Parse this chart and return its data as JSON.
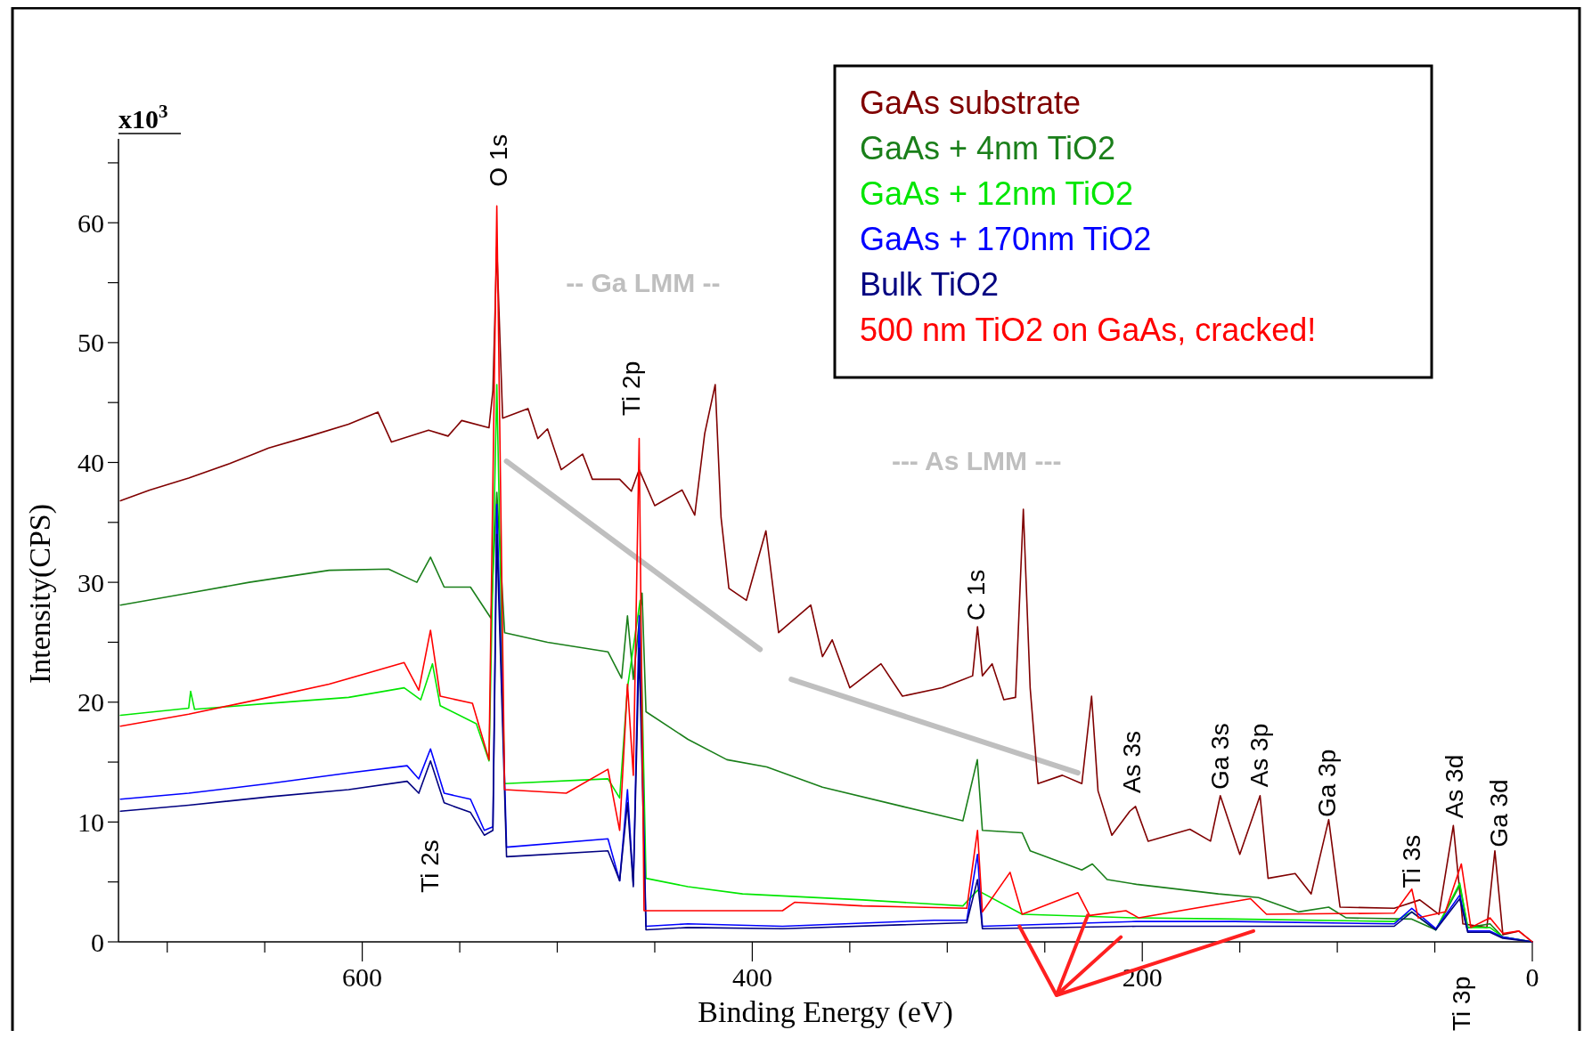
{
  "chart_data": {
    "type": "line",
    "xlabel": "Binding Energy (eV)",
    "ylabel": "Intensity(CPS)",
    "xlim": [
      725,
      0
    ],
    "ylim": [
      0,
      67
    ],
    "xticks": [
      {
        "value": 700,
        "label": null
      },
      {
        "value": 650,
        "label": null
      },
      600,
      {
        "value": 550,
        "label": null
      },
      {
        "value": 500,
        "label": null
      },
      {
        "value": 450,
        "label": null
      },
      400,
      {
        "value": 350,
        "label": null
      },
      {
        "value": 300,
        "label": null
      },
      {
        "value": 250,
        "label": null
      },
      200,
      {
        "value": 150,
        "label": null
      },
      {
        "value": 100,
        "label": null
      },
      {
        "value": 50,
        "label": null
      },
      0
    ],
    "yticks": [
      0,
      {
        "value": 5,
        "label": null
      },
      10,
      {
        "value": 15,
        "label": null
      },
      20,
      {
        "value": 25,
        "label": null
      },
      30,
      {
        "value": 35,
        "label": null
      },
      40,
      {
        "value": 45,
        "label": null
      },
      50,
      {
        "value": 55,
        "label": null
      },
      60,
      {
        "value": 65,
        "label": null
      }
    ],
    "legend": "top right",
    "series": [
      {
        "name": "GaAs substrate",
        "color": "#800000",
        "x": [
          724,
          709,
          689,
          668,
          648,
          627,
          607,
          592,
          585,
          566,
          556,
          549,
          535,
          533,
          531,
          528,
          515,
          510,
          505,
          498,
          487,
          482,
          468,
          462,
          458,
          450,
          436,
          429.5,
          424.4,
          419,
          416,
          412,
          403,
          393,
          386.5,
          370,
          364,
          359,
          350,
          334,
          323,
          302.6,
          287,
          284.5,
          282,
          277,
          271,
          265,
          261,
          257.5,
          253.5,
          241,
          231,
          226,
          222.7,
          215.6,
          206.4,
          203.5,
          197,
          175.6,
          165,
          160,
          150,
          139.6,
          135.5,
          121.6,
          113.4,
          104.4,
          98.6,
          70.8,
          57.7,
          47.9,
          40.5,
          35.6,
          23.3,
          19.2,
          15.1,
          6.9,
          0
        ],
        "values": [
          36.8,
          37.7,
          38.7,
          39.9,
          41.2,
          42.2,
          43.2,
          44.2,
          41.7,
          42.7,
          42.2,
          43.5,
          42.9,
          46,
          58,
          43.7,
          44.5,
          42,
          42.8,
          39.4,
          40.7,
          38.6,
          38.6,
          37.6,
          39.4,
          36.4,
          37.7,
          35.6,
          42.4,
          46.5,
          35.4,
          29.5,
          28.5,
          34.3,
          25.8,
          28.1,
          23.8,
          25.2,
          21.2,
          23.2,
          20.5,
          21.2,
          22.2,
          26.3,
          22.2,
          23.2,
          20.2,
          20.4,
          36.1,
          21.2,
          13.2,
          13.9,
          13.2,
          20.5,
          12.6,
          8.9,
          10.9,
          11.3,
          8.4,
          9.4,
          8.4,
          12.2,
          7.3,
          12.2,
          5.3,
          5.7,
          4,
          10.2,
          2.9,
          2.8,
          3.5,
          2.3,
          9.7,
          1.5,
          1.2,
          7.6,
          0.6,
          0.9,
          0
        ]
      },
      {
        "name": "GaAs + 4nm TiO2",
        "color": "#1a7f1a",
        "x": [
          724,
          689,
          658,
          617,
          586.5,
          572,
          565,
          558,
          544.5,
          534,
          531,
          527,
          505,
          474,
          467,
          464,
          461,
          456.5,
          454.5,
          433,
          413,
          392.6,
          364,
          323,
          292,
          284.6,
          282,
          261.6,
          257.5,
          231,
          225.6,
          218,
          203,
          161,
          140.4,
          120,
          104.4,
          95.4,
          61.8,
          49.5,
          37.2,
          33.1,
          21.7,
          15.1,
          0
        ],
        "values": [
          28.1,
          29.1,
          30,
          31,
          31.1,
          30,
          32.1,
          29.6,
          29.6,
          27,
          37.5,
          25.8,
          25,
          24.2,
          22,
          27.2,
          21.9,
          29.1,
          19.2,
          16.9,
          15.2,
          14.6,
          12.9,
          11.3,
          10.1,
          15.2,
          9.3,
          9.1,
          7.6,
          6,
          6.5,
          5.2,
          4.8,
          4,
          3.7,
          2.5,
          2.9,
          2,
          1.9,
          1,
          4.7,
          1.2,
          1.5,
          0.4,
          0
        ]
      },
      {
        "name": "GaAs + 12nm TiO2",
        "color": "#00e600",
        "x": [
          724,
          689,
          688,
          686,
          648,
          607,
          578.5,
          570,
          564,
          560,
          541.5,
          535,
          531,
          527,
          474,
          468,
          464,
          457.5,
          454.5,
          433,
          405,
          343.5,
          292,
          284.5,
          261.6,
          203,
          152.7,
          70.8,
          61.8,
          49.5,
          37.2,
          33.1,
          21.7,
          15.1,
          0
        ],
        "values": [
          18.9,
          19.5,
          20.9,
          19.4,
          19.9,
          20.4,
          21.2,
          20.2,
          23.2,
          19.7,
          18.2,
          15.1,
          46.5,
          13.2,
          13.6,
          12,
          21.2,
          28.5,
          5.3,
          4.6,
          4,
          3.5,
          3,
          4.3,
          2.3,
          2,
          1.9,
          1.7,
          2.5,
          1,
          4.9,
          1.2,
          1.2,
          0.4,
          0
        ]
      },
      {
        "name": "GaAs + 170nm TiO2",
        "color": "#0000ff",
        "x": [
          724,
          689,
          648,
          607,
          577,
          571,
          565,
          558,
          544.5,
          537.4,
          533,
          531,
          526,
          474,
          468,
          464,
          461,
          458,
          454.5,
          433,
          384.5,
          306.7,
          290,
          284.5,
          282,
          203,
          152.7,
          70.8,
          61.8,
          49.5,
          37.2,
          33.1,
          21.7,
          15.1,
          0
        ],
        "values": [
          11.9,
          12.4,
          13.2,
          14.1,
          14.7,
          13.6,
          16.1,
          12.4,
          11.9,
          9.3,
          9.6,
          36.5,
          7.9,
          8.6,
          5.1,
          12.7,
          4.8,
          27.2,
          1.3,
          1.5,
          1.3,
          1.8,
          1.8,
          7.3,
          1.3,
          1.7,
          1.7,
          1.5,
          2.8,
          1.1,
          3.9,
          0.9,
          0.9,
          0.4,
          0
        ]
      },
      {
        "name": "Bulk TiO2",
        "color": "#000080",
        "x": [
          724,
          689,
          648,
          607,
          577,
          571,
          565,
          558,
          544.5,
          537.4,
          533,
          531,
          526,
          474,
          468,
          464,
          461,
          458,
          454.5,
          433,
          384.5,
          290,
          284.5,
          282,
          203,
          152.7,
          70.8,
          61.8,
          49.5,
          37.2,
          33.1,
          21.7,
          15.1,
          0
        ],
        "values": [
          10.9,
          11.4,
          12.1,
          12.7,
          13.4,
          12.4,
          15.1,
          11.6,
          10.8,
          8.9,
          9.3,
          34,
          7.1,
          7.6,
          5.1,
          11.6,
          4.6,
          24.5,
          1,
          1.2,
          1.1,
          1.6,
          5.2,
          1.1,
          1.3,
          1.3,
          1.3,
          2.5,
          1,
          3.6,
          0.8,
          0.8,
          0.3,
          0
        ]
      },
      {
        "name": "500 nm TiO2 on GaAs, cracked!",
        "color": "#ff0000",
        "x": [
          724,
          689,
          648,
          617,
          578.5,
          571,
          565,
          560,
          543.5,
          535,
          531,
          527,
          495.4,
          474,
          468,
          464,
          461,
          458,
          455.5,
          433,
          384.5,
          378.3,
          343.5,
          290,
          284.5,
          282,
          267.8,
          261.6,
          233,
          227,
          208.4,
          201.8,
          144.5,
          136.3,
          70.8,
          61.8,
          58.5,
          44.6,
          36.4,
          31.5,
          21.7,
          15.1,
          6.9,
          0
        ],
        "values": [
          18,
          19,
          20.4,
          21.5,
          23.3,
          21,
          26,
          20.5,
          19.9,
          15.2,
          61.4,
          12.7,
          12.4,
          14.4,
          9.3,
          21.5,
          13.9,
          42,
          2.6,
          2.6,
          2.6,
          3.3,
          3,
          2.8,
          9.3,
          2.5,
          5.8,
          2.3,
          4.1,
          2.2,
          2.6,
          2,
          3.6,
          2.3,
          2.4,
          4.4,
          2,
          2.5,
          6.5,
          1.2,
          2,
          0.7,
          0.9,
          0
        ]
      }
    ],
    "annotations": [
      "x10$^{3}$",
      "O 1s",
      "Ti 2p",
      "C 1s",
      "As 3s",
      "Ga 3s",
      "As 3p",
      "Ga 3p",
      "Ti 3s",
      "As 3d",
      "Ga 3d",
      "Ti 2s",
      "Ti 3p",
      "-- Ga LMM --",
      "--- As LMM ---"
    ]
  }
}
